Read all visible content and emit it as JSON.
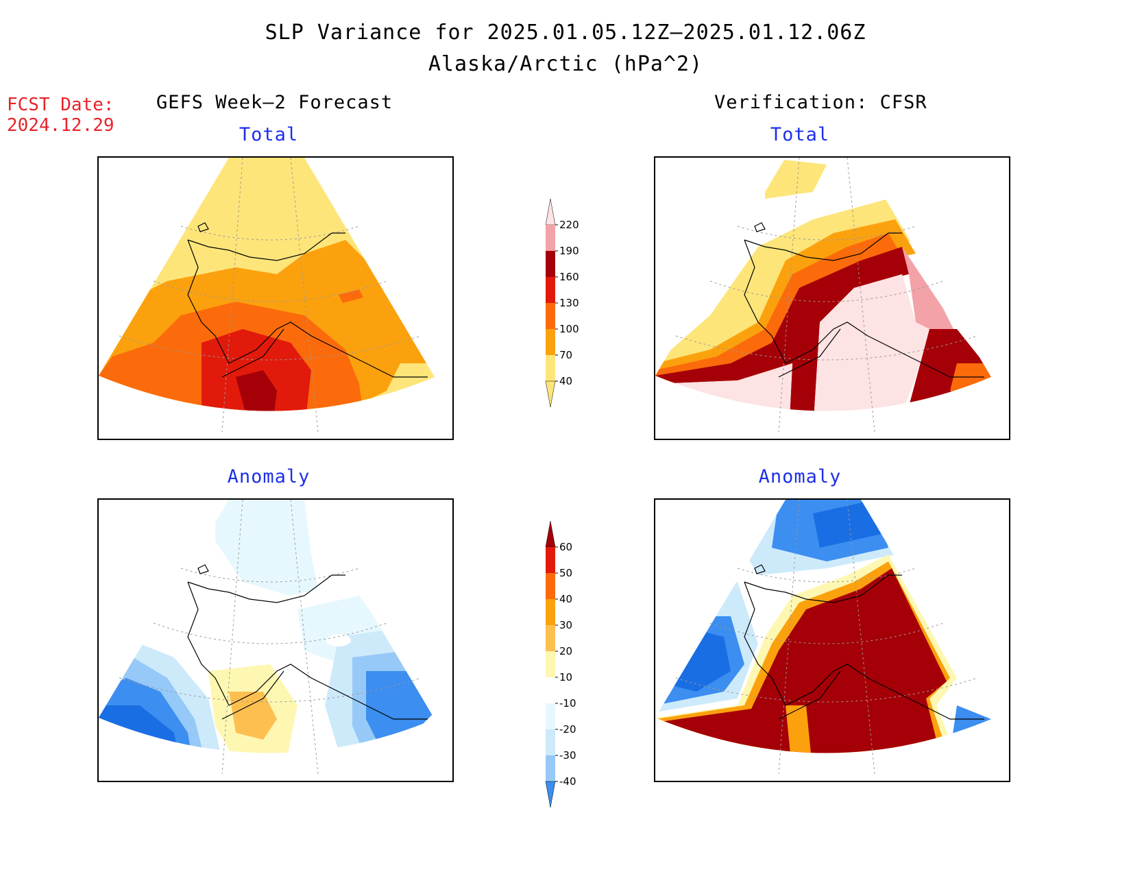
{
  "header": {
    "title_line1": "SLP Variance for 2025.01.05.12Z–2025.01.12.06Z",
    "title_line2": "Alaska/Arctic (hPa^2)"
  },
  "forecast_date": {
    "label": "FCST Date:",
    "value": "2024.12.29"
  },
  "columns": {
    "left": "GEFS Week–2 Forecast",
    "right": "Verification: CFSR"
  },
  "panel_titles": {
    "total": "Total",
    "anomaly": "Anomaly"
  },
  "colorbars": {
    "total": {
      "levels": [
        "40",
        "70",
        "100",
        "130",
        "160",
        "190",
        "220"
      ],
      "colors": [
        "#fde57a",
        "#fca10e",
        "#fb6b0b",
        "#e21a0c",
        "#a50007",
        "#f3a3a7",
        "#fde3e3"
      ]
    },
    "anomaly": {
      "levels": [
        "-40",
        "-30",
        "-20",
        "-10",
        "10",
        "20",
        "30",
        "40",
        "50",
        "60"
      ],
      "colors": [
        "#1a6ee4",
        "#3c8ef0",
        "#96c9f7",
        "#cdeafb",
        "#e6f8fd",
        "#ffffff",
        "#fdf7b2",
        "#fdc050",
        "#fca10e",
        "#fb6b0b",
        "#e21a0c",
        "#a50007"
      ]
    }
  },
  "map_colors": {
    "total": [
      "#fde57a",
      "#fca10e",
      "#fb6b0b",
      "#e21a0c",
      "#a50007",
      "#f3a3a7",
      "#fde3e3"
    ],
    "anomaly_neg": [
      "#1a6ee4",
      "#3c8ef0",
      "#96c9f7",
      "#cdeafb",
      "#e6f8fd"
    ],
    "anomaly_pos": [
      "#fdf7b2",
      "#fdc050",
      "#fca10e",
      "#fb6b0b",
      "#e21a0c",
      "#a50007"
    ]
  }
}
